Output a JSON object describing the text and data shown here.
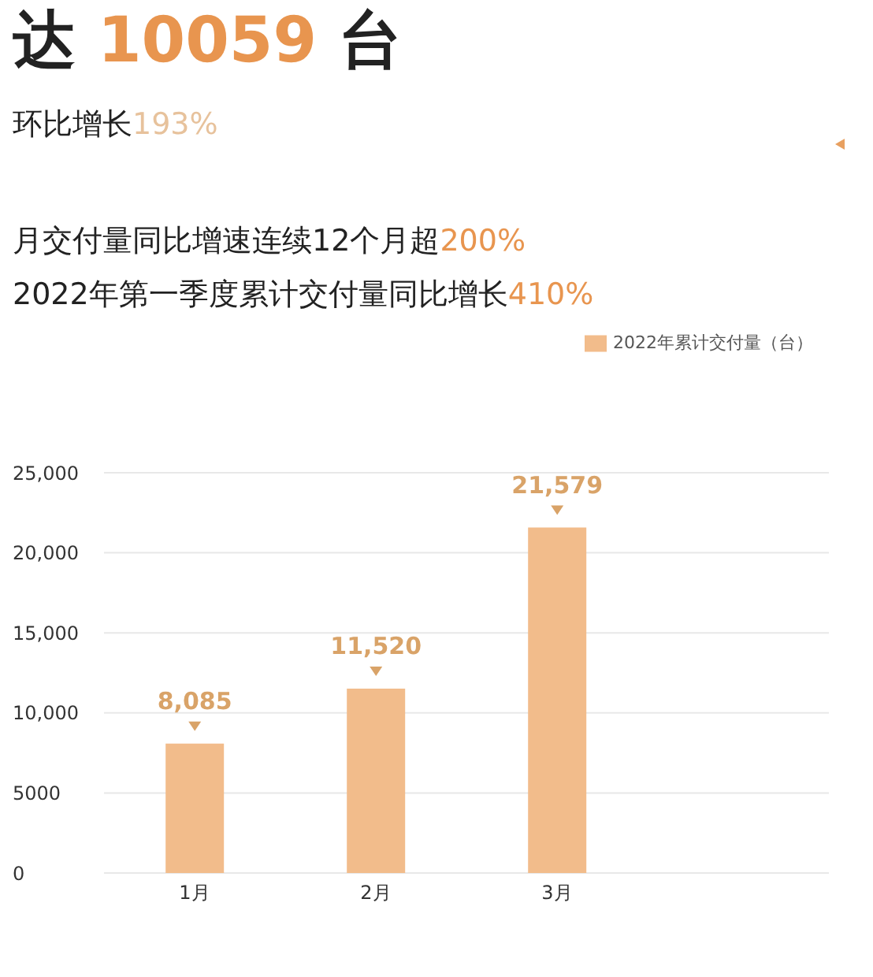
{
  "chart_data": {
    "type": "bar",
    "title": "达 10059 台",
    "subtitle": "环比增长193%",
    "annotations": [
      "月交付量同比增速连续12个月超200%",
      "2022年第一季度累计交付量同比增长410%"
    ],
    "categories": [
      "1月",
      "2月",
      "3月",
      null
    ],
    "series": [
      {
        "name": "2022年累计交付量（台）",
        "color": "#f2bc8b",
        "values": [
          8085,
          11520,
          21579,
          null
        ],
        "value_labels": [
          "8,085",
          "11,520",
          "21,579",
          null
        ]
      }
    ],
    "ylim": [
      0,
      25000
    ],
    "yticks": [
      0,
      5000,
      {
        "value": 10000,
        "label": "10,000"
      },
      {
        "value": 15000,
        "label": "15,000"
      },
      {
        "value": 20000,
        "label": "20,000"
      },
      {
        "value": 25000,
        "label": "25,000"
      }
    ],
    "grid": "y",
    "legend": "top right"
  }
}
